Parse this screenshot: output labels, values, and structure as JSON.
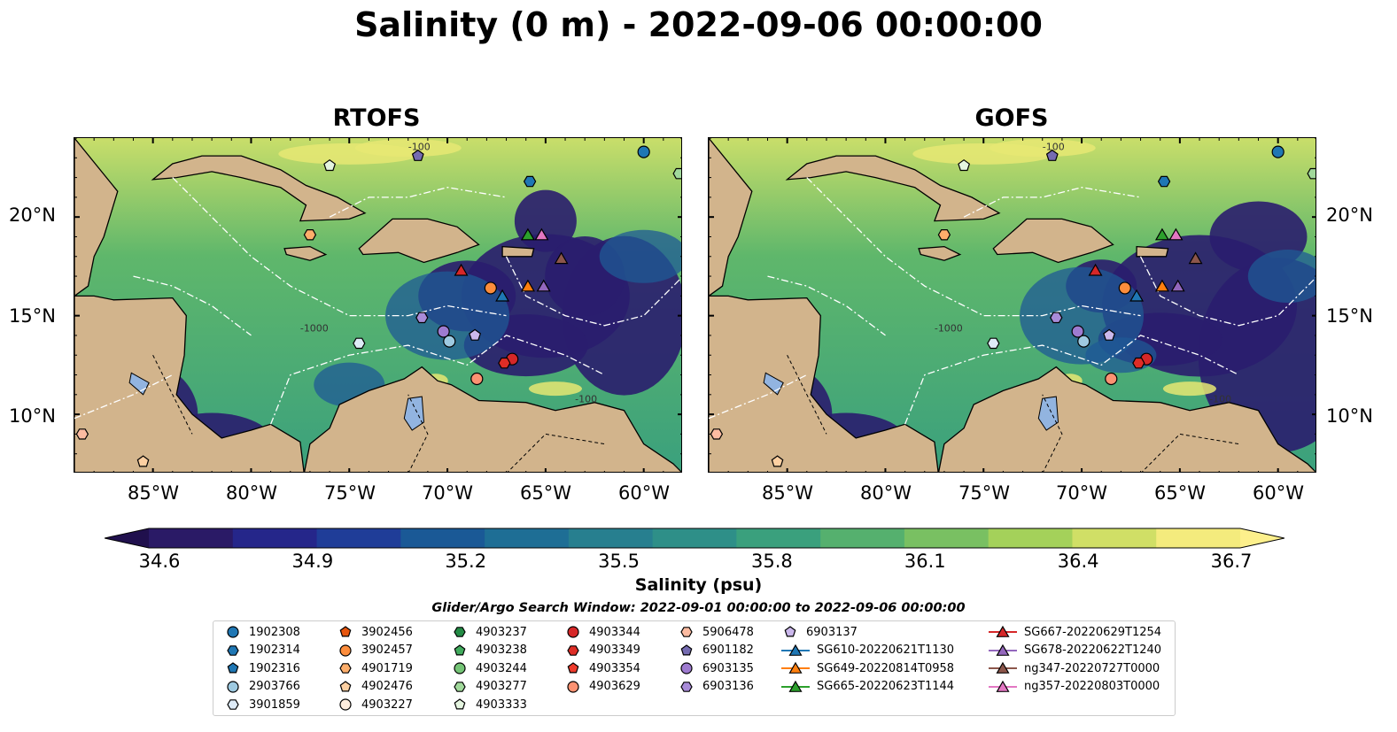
{
  "title": "Salinity (0 m) - 2022-09-06 00:00:00",
  "panels": [
    {
      "name": "RTOFS"
    },
    {
      "name": "GOFS"
    }
  ],
  "map": {
    "lon_range": [
      -89,
      -58
    ],
    "lat_range": [
      7,
      24
    ],
    "lat_ticks": [
      "10°N",
      "15°N",
      "20°N"
    ],
    "lon_ticks": [
      "85°W",
      "80°W",
      "75°W",
      "70°W",
      "65°W",
      "60°W"
    ],
    "land_color": "#d2b48c",
    "lake_color": "#92b4e0",
    "contour_labels": [
      "-100",
      "-1000",
      "-100"
    ]
  },
  "colorbar": {
    "ticks": [
      "34.6",
      "34.9",
      "35.2",
      "35.5",
      "35.8",
      "36.1",
      "36.4",
      "36.7"
    ],
    "label": "Salinity (psu)",
    "colors": [
      "#2a1a66",
      "#25268a",
      "#1f3d98",
      "#1a5996",
      "#1e6e95",
      "#277f8f",
      "#2e8f88",
      "#3aa07d",
      "#55b06e",
      "#79c062",
      "#a4d15a",
      "#d0df66",
      "#f4eb7d"
    ]
  },
  "search_window": "Glider/Argo Search Window: 2022-09-01 00:00:00 to 2022-09-06 00:00:00",
  "legend": {
    "columns": [
      [
        {
          "label": "1902308",
          "marker": "circle",
          "color": "#1f77b4"
        },
        {
          "label": "1902314",
          "marker": "hexagon",
          "color": "#1f77b4"
        },
        {
          "label": "1902316",
          "marker": "pentagon",
          "color": "#1f77b4"
        },
        {
          "label": "2903766",
          "marker": "circle",
          "color": "#9ecae1"
        },
        {
          "label": "3901859",
          "marker": "hexagon",
          "color": "#deebf7"
        }
      ],
      [
        {
          "label": "3902456",
          "marker": "pentagon",
          "color": "#e6550d"
        },
        {
          "label": "3902457",
          "marker": "circle",
          "color": "#fd8d3c"
        },
        {
          "label": "4901719",
          "marker": "hexagon",
          "color": "#fdae6b"
        },
        {
          "label": "4902476",
          "marker": "pentagon",
          "color": "#fdd0a2"
        },
        {
          "label": "4903227",
          "marker": "circle",
          "color": "#feedde"
        }
      ],
      [
        {
          "label": "4903237",
          "marker": "hexagon",
          "color": "#238b45"
        },
        {
          "label": "4903238",
          "marker": "pentagon",
          "color": "#41ab5d"
        },
        {
          "label": "4903244",
          "marker": "circle",
          "color": "#74c476"
        },
        {
          "label": "4903277",
          "marker": "hexagon",
          "color": "#a1d99b"
        },
        {
          "label": "4903333",
          "marker": "pentagon",
          "color": "#e5f5e0"
        }
      ],
      [
        {
          "label": "4903344",
          "marker": "circle",
          "color": "#d62728"
        },
        {
          "label": "4903349",
          "marker": "hexagon",
          "color": "#de2d26"
        },
        {
          "label": "4903354",
          "marker": "pentagon",
          "color": "#ef3b2c"
        },
        {
          "label": "4903629",
          "marker": "circle",
          "color": "#fc9272"
        }
      ],
      [
        {
          "label": "5906478",
          "marker": "hexagon",
          "color": "#fcbba1"
        },
        {
          "label": "6901182",
          "marker": "pentagon",
          "color": "#756bb1"
        },
        {
          "label": "6903135",
          "marker": "circle",
          "color": "#9e7bd0"
        },
        {
          "label": "6903136",
          "marker": "hexagon",
          "color": "#a88bd8"
        }
      ],
      [
        {
          "label": "6903137",
          "marker": "pentagon",
          "color": "#cbb8ec"
        },
        {
          "label": "SG610-20220621T1130",
          "marker": "triangle-line",
          "color": "#1f77b4"
        },
        {
          "label": "SG649-20220814T0958",
          "marker": "triangle-line",
          "color": "#ff7f0e"
        },
        {
          "label": "SG665-20220623T1144",
          "marker": "triangle-line",
          "color": "#2ca02c"
        }
      ],
      [
        {
          "label": "SG667-20220629T1254",
          "marker": "triangle-line",
          "color": "#d62728"
        },
        {
          "label": "SG678-20220622T1240",
          "marker": "triangle-line",
          "color": "#9467bd"
        },
        {
          "label": "ng347-20220727T0000",
          "marker": "triangle-line",
          "color": "#8c564b"
        },
        {
          "label": "ng357-20220803T0000",
          "marker": "triangle-line",
          "color": "#e377c2"
        }
      ]
    ]
  },
  "platforms": [
    {
      "label": "1902308",
      "lon": -60.0,
      "lat": 23.3
    },
    {
      "label": "1902314",
      "lon": -65.8,
      "lat": 21.8
    },
    {
      "label": "3901859",
      "lon": -74.5,
      "lat": 13.6
    },
    {
      "label": "2903766",
      "lon": -69.9,
      "lat": 13.7
    },
    {
      "label": "3902457",
      "lon": -67.8,
      "lat": 16.4
    },
    {
      "label": "4901719",
      "lon": -77.0,
      "lat": 19.1
    },
    {
      "label": "4902476",
      "lon": -85.5,
      "lat": 7.6
    },
    {
      "label": "4903333",
      "lon": -76.0,
      "lat": 22.6
    },
    {
      "label": "4903277",
      "lon": -58.2,
      "lat": 22.2
    },
    {
      "label": "4903344",
      "lon": -66.7,
      "lat": 12.8
    },
    {
      "label": "4903349",
      "lon": -67.1,
      "lat": 12.6
    },
    {
      "label": "4903629",
      "lon": -68.5,
      "lat": 11.8
    },
    {
      "label": "5906478",
      "lon": -88.6,
      "lat": 9.0
    },
    {
      "label": "6901182",
      "lon": -71.5,
      "lat": 23.1
    },
    {
      "label": "6903135",
      "lon": -70.2,
      "lat": 14.2
    },
    {
      "label": "6903136",
      "lon": -71.3,
      "lat": 14.9
    },
    {
      "label": "6903137",
      "lon": -68.6,
      "lat": 14.0
    },
    {
      "label": "SG610-20220621T1130",
      "lon": -67.2,
      "lat": 16.0
    },
    {
      "label": "SG649-20220814T0958",
      "lon": -65.9,
      "lat": 16.5
    },
    {
      "label": "SG665-20220623T1144",
      "lon": -65.9,
      "lat": 19.1
    },
    {
      "label": "SG667-20220629T1254",
      "lon": -69.3,
      "lat": 17.3
    },
    {
      "label": "SG678-20220622T1240",
      "lon": -65.1,
      "lat": 16.5
    },
    {
      "label": "ng347-20220727T0000",
      "lon": -64.2,
      "lat": 17.9
    },
    {
      "label": "ng357-20220803T0000",
      "lon": -65.2,
      "lat": 19.1
    }
  ]
}
